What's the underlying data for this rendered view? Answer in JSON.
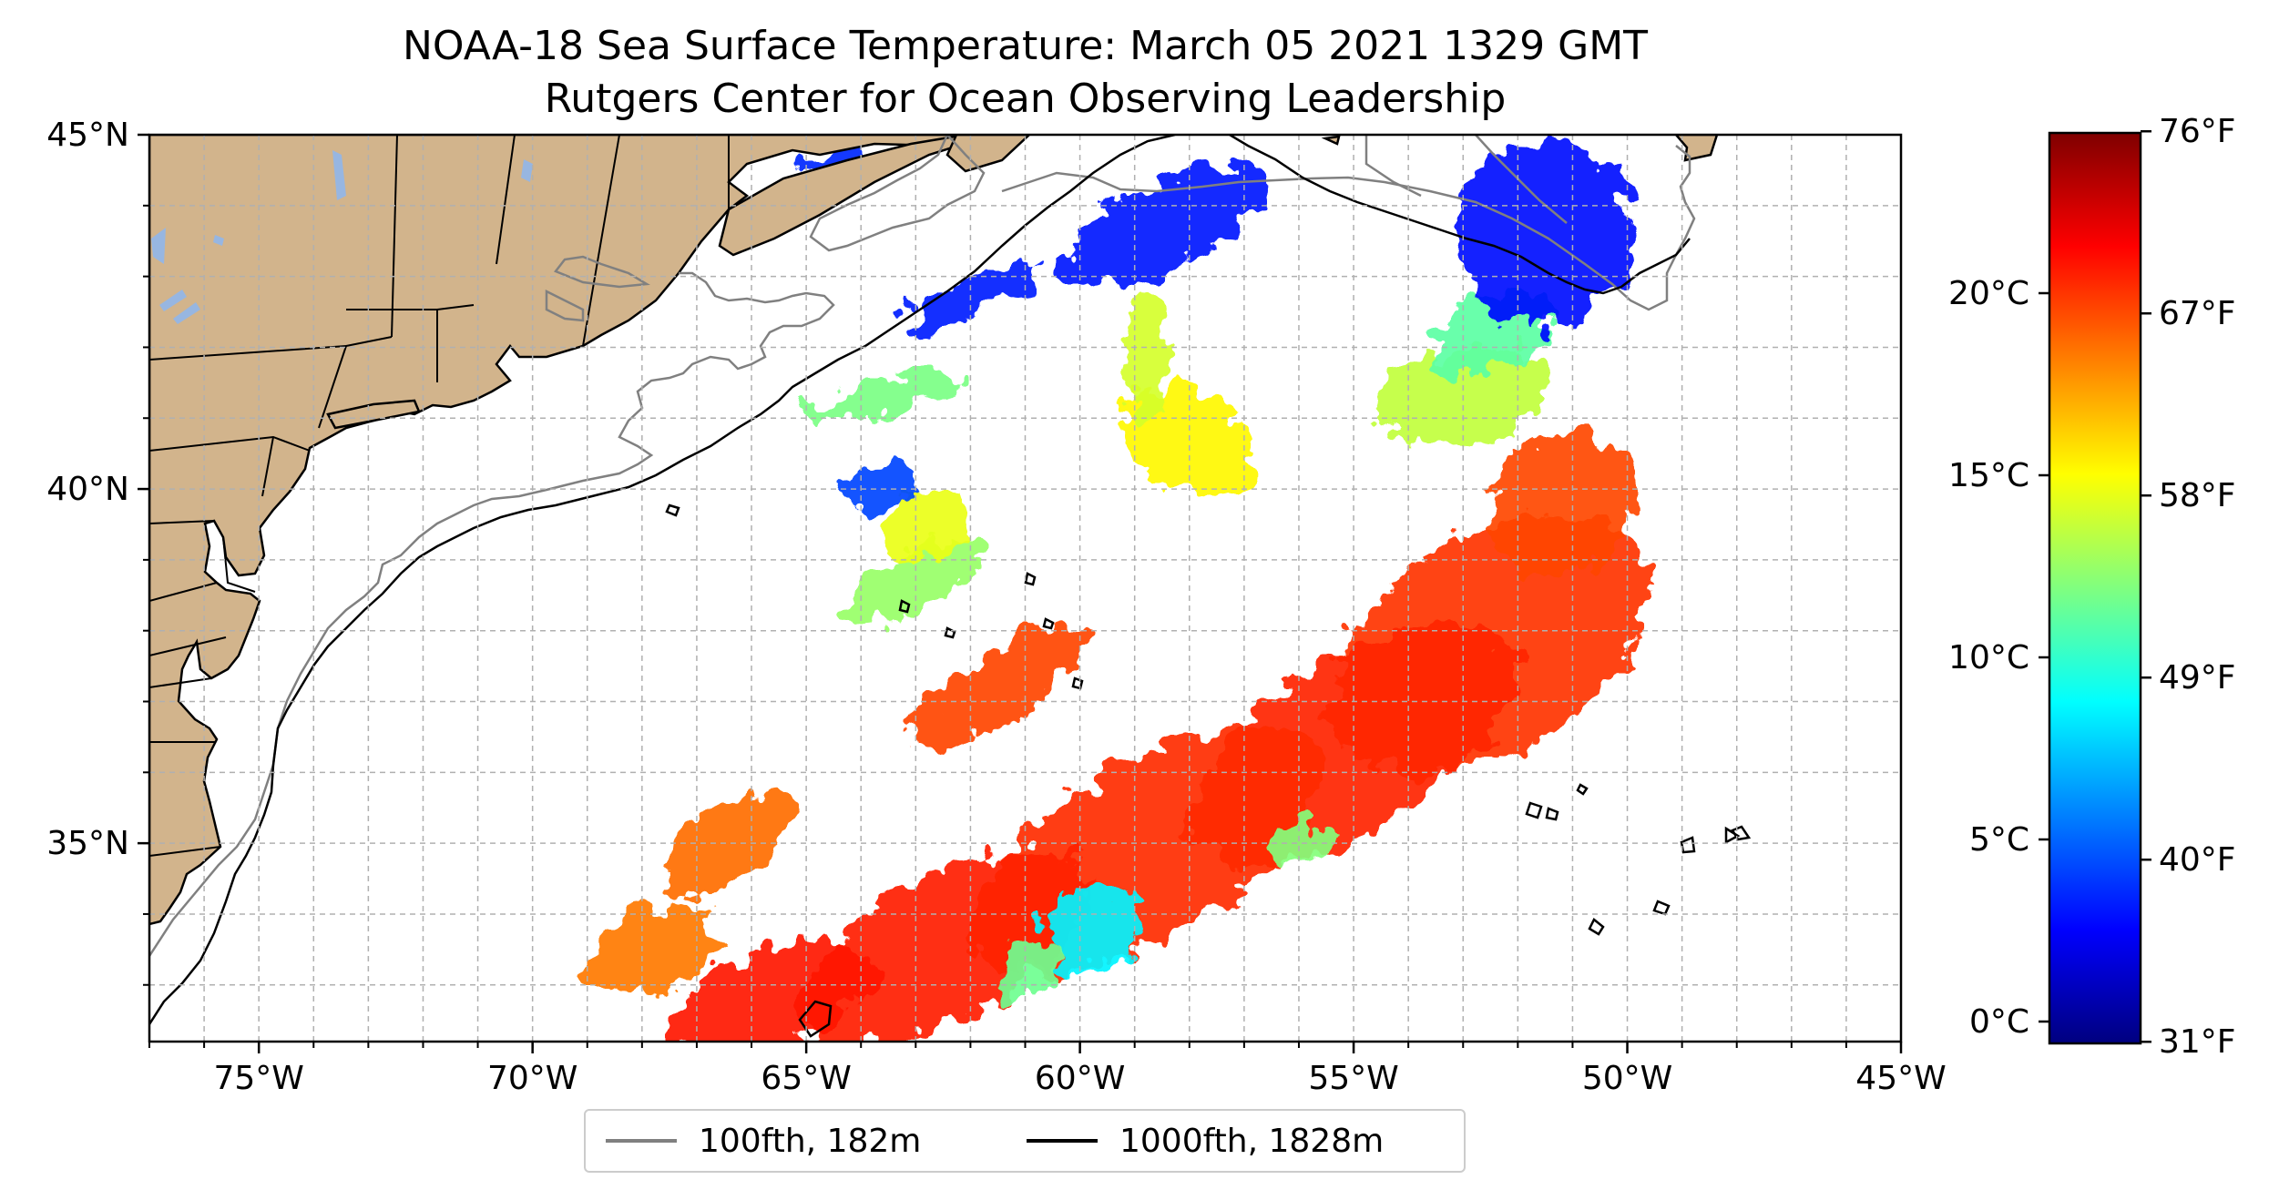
{
  "title": "NOAA-18 Sea Surface Temperature: March 05 2021 1329 GMT",
  "subtitle": "Rutgers Center for Ocean Observing Leadership",
  "map": {
    "lon_range": [
      -77,
      -45
    ],
    "lat_range": [
      32.2,
      45
    ],
    "lon_ticks": [
      {
        "value": -75,
        "label": "75°W"
      },
      {
        "value": -70,
        "label": "70°W"
      },
      {
        "value": -65,
        "label": "65°W"
      },
      {
        "value": -60,
        "label": "60°W"
      },
      {
        "value": -55,
        "label": "55°W"
      },
      {
        "value": -50,
        "label": "50°W"
      },
      {
        "value": -45,
        "label": "45°W"
      }
    ],
    "lat_ticks": [
      {
        "value": 45,
        "label": "45°N"
      },
      {
        "value": 40,
        "label": "40°N"
      },
      {
        "value": 35,
        "label": "35°N"
      }
    ],
    "grid": "dashed every 1°",
    "land_color": "#d2b48c",
    "lake_color": "#97b6e1"
  },
  "legend": [
    {
      "label": "100fth, 182m",
      "color": "#808080"
    },
    {
      "label": "1000fth, 1828m",
      "color": "#000000"
    }
  ],
  "colorbar": {
    "colormap": "jet",
    "celsius_range": [
      -0.6,
      24.4
    ],
    "celsius_ticks": [
      {
        "value": 0,
        "label": "0°C"
      },
      {
        "value": 5,
        "label": "5°C"
      },
      {
        "value": 10,
        "label": "10°C"
      },
      {
        "value": 15,
        "label": "15°C"
      },
      {
        "value": 20,
        "label": "20°C"
      }
    ],
    "fahrenheit_ticks": [
      {
        "value": 31,
        "label": "31°F"
      },
      {
        "value": 40,
        "label": "40°F"
      },
      {
        "value": 49,
        "label": "49°F"
      },
      {
        "value": 58,
        "label": "58°F"
      },
      {
        "value": 67,
        "label": "67°F"
      },
      {
        "value": 76,
        "label": "76°F"
      }
    ]
  },
  "sst_patches": [
    {
      "lon": -52.5,
      "lat": 37.8,
      "rlon": 3.2,
      "rlat": 1.5,
      "angle": -32,
      "temp": 20.0
    },
    {
      "lon": -55.0,
      "lat": 36.4,
      "rlon": 3.4,
      "rlat": 1.2,
      "angle": -32,
      "temp": 20.4
    },
    {
      "lon": -58.8,
      "lat": 34.9,
      "rlon": 3.6,
      "rlat": 1.2,
      "angle": -30,
      "temp": 20.2
    },
    {
      "lon": -62.5,
      "lat": 33.5,
      "rlon": 3.0,
      "rlat": 1.0,
      "angle": -28,
      "temp": 20.5
    },
    {
      "lon": -65.6,
      "lat": 32.8,
      "rlon": 2.0,
      "rlat": 0.7,
      "angle": -20,
      "temp": 20.8
    },
    {
      "lon": -51.2,
      "lat": 39.8,
      "rlon": 1.4,
      "rlat": 1.0,
      "angle": -40,
      "temp": 19.5
    },
    {
      "lon": -61.5,
      "lat": 37.2,
      "rlon": 1.8,
      "rlat": 0.5,
      "angle": -35,
      "temp": 19.6
    },
    {
      "lon": -66.5,
      "lat": 35.0,
      "rlon": 1.4,
      "rlat": 0.5,
      "angle": -35,
      "temp": 18.6
    },
    {
      "lon": -67.8,
      "lat": 33.5,
      "rlon": 1.2,
      "rlat": 0.6,
      "angle": -20,
      "temp": 18.3
    },
    {
      "lon": -59.8,
      "lat": 33.8,
      "rlon": 0.9,
      "rlat": 0.6,
      "angle": -20,
      "temp": 8.5
    },
    {
      "lon": -61.0,
      "lat": 33.2,
      "rlon": 0.6,
      "rlat": 0.4,
      "angle": -20,
      "temp": 11.5
    },
    {
      "lon": -56.0,
      "lat": 35.0,
      "rlon": 0.6,
      "rlat": 0.3,
      "angle": -20,
      "temp": 12.0
    },
    {
      "lon": -58.0,
      "lat": 40.7,
      "rlon": 0.9,
      "rlat": 1.0,
      "angle": -60,
      "temp": 15.2
    },
    {
      "lon": -58.8,
      "lat": 41.8,
      "rlon": 0.4,
      "rlat": 0.9,
      "angle": 0,
      "temp": 14.0
    },
    {
      "lon": -53.0,
      "lat": 41.3,
      "rlon": 1.6,
      "rlat": 0.7,
      "angle": -10,
      "temp": 13.5
    },
    {
      "lon": -52.5,
      "lat": 42.2,
      "rlon": 1.2,
      "rlat": 0.5,
      "angle": -20,
      "temp": 11.0
    },
    {
      "lon": -63.5,
      "lat": 41.3,
      "rlon": 1.5,
      "rlat": 0.25,
      "angle": -12,
      "temp": 11.8
    },
    {
      "lon": -63.0,
      "lat": 38.7,
      "rlon": 1.5,
      "rlat": 0.4,
      "angle": -25,
      "temp": 12.5
    },
    {
      "lon": -62.8,
      "lat": 39.5,
      "rlon": 0.8,
      "rlat": 0.5,
      "angle": -30,
      "temp": 14.5
    },
    {
      "lon": -51.5,
      "lat": 43.6,
      "rlon": 1.6,
      "rlat": 1.3,
      "angle": 0,
      "temp": 2.8
    },
    {
      "lon": -58.5,
      "lat": 43.7,
      "rlon": 2.0,
      "rlat": 0.6,
      "angle": -25,
      "temp": 3.0
    },
    {
      "lon": -62.0,
      "lat": 42.7,
      "rlon": 1.4,
      "rlat": 0.25,
      "angle": -25,
      "temp": 3.2
    },
    {
      "lon": -64.5,
      "lat": 44.6,
      "rlon": 0.7,
      "rlat": 0.15,
      "angle": -10,
      "temp": 3.5
    },
    {
      "lon": -63.6,
      "lat": 40.0,
      "rlon": 0.7,
      "rlat": 0.3,
      "angle": -10,
      "temp": 4.2
    }
  ]
}
